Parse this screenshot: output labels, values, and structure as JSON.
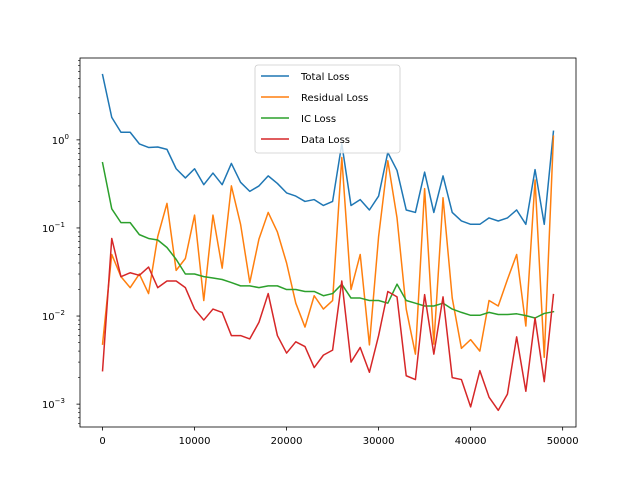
{
  "chart_data": {
    "type": "line",
    "title": "",
    "xlabel": "",
    "ylabel": "",
    "yscale": "log",
    "xlim": [
      -2450,
      51450
    ],
    "ylim": [
      0.00055,
      8.5
    ],
    "xticks": [
      0,
      10000,
      20000,
      30000,
      40000,
      50000
    ],
    "xtick_labels": [
      "0",
      "10000",
      "20000",
      "30000",
      "40000",
      "50000"
    ],
    "yticks": [
      0.001,
      0.01,
      0.1,
      1
    ],
    "ytick_labels": [
      "10",
      "10",
      "10",
      "10"
    ],
    "ytick_exponents": [
      "−3",
      "−2",
      "−1",
      "0"
    ],
    "grid": false,
    "legend_position": "top-center",
    "x": [
      0,
      1000,
      2000,
      3000,
      4000,
      5000,
      6000,
      7000,
      8000,
      9000,
      10000,
      11000,
      12000,
      13000,
      14000,
      15000,
      16000,
      17000,
      18000,
      19000,
      20000,
      21000,
      22000,
      23000,
      24000,
      25000,
      26000,
      27000,
      28000,
      29000,
      30000,
      31000,
      32000,
      33000,
      34000,
      35000,
      36000,
      37000,
      38000,
      39000,
      40000,
      41000,
      42000,
      43000,
      44000,
      45000,
      46000,
      47000,
      48000,
      49000
    ],
    "series": [
      {
        "name": "Total Loss",
        "color": "#1f77b4",
        "values": [
          5.5,
          1.8,
          1.22,
          1.22,
          0.9,
          0.82,
          0.83,
          0.78,
          0.47,
          0.37,
          0.47,
          0.31,
          0.42,
          0.31,
          0.54,
          0.33,
          0.26,
          0.3,
          0.39,
          0.32,
          0.25,
          0.23,
          0.2,
          0.21,
          0.18,
          0.2,
          0.9,
          0.18,
          0.21,
          0.16,
          0.23,
          0.72,
          0.45,
          0.16,
          0.15,
          0.43,
          0.15,
          0.39,
          0.15,
          0.12,
          0.11,
          0.11,
          0.13,
          0.12,
          0.13,
          0.16,
          0.11,
          0.46,
          0.11,
          1.25
        ]
      },
      {
        "name": "Residual Loss",
        "color": "#ff7f0e",
        "values": [
          0.0048,
          0.05,
          0.028,
          0.021,
          0.03,
          0.018,
          0.08,
          0.19,
          0.033,
          0.045,
          0.14,
          0.015,
          0.14,
          0.035,
          0.3,
          0.11,
          0.024,
          0.075,
          0.15,
          0.09,
          0.04,
          0.014,
          0.0075,
          0.017,
          0.012,
          0.015,
          0.63,
          0.02,
          0.05,
          0.0047,
          0.08,
          0.58,
          0.13,
          0.012,
          0.0037,
          0.28,
          0.0048,
          0.22,
          0.016,
          0.0043,
          0.0054,
          0.004,
          0.015,
          0.013,
          0.026,
          0.05,
          0.0077,
          0.35,
          0.0034,
          1.1
        ]
      },
      {
        "name": "IC Loss",
        "color": "#2ca02c",
        "values": [
          0.55,
          0.165,
          0.115,
          0.115,
          0.084,
          0.076,
          0.073,
          0.06,
          0.044,
          0.03,
          0.03,
          0.028,
          0.027,
          0.026,
          0.024,
          0.022,
          0.022,
          0.021,
          0.022,
          0.022,
          0.02,
          0.02,
          0.019,
          0.019,
          0.017,
          0.018,
          0.023,
          0.016,
          0.016,
          0.015,
          0.015,
          0.014,
          0.023,
          0.015,
          0.014,
          0.013,
          0.013,
          0.014,
          0.012,
          0.011,
          0.0102,
          0.0102,
          0.011,
          0.0104,
          0.0104,
          0.0106,
          0.0101,
          0.0095,
          0.0107,
          0.0112
        ]
      },
      {
        "name": "Data Loss",
        "color": "#d62728",
        "values": [
          0.0024,
          0.076,
          0.028,
          0.031,
          0.029,
          0.036,
          0.021,
          0.025,
          0.025,
          0.021,
          0.012,
          0.009,
          0.012,
          0.011,
          0.006,
          0.006,
          0.0055,
          0.0085,
          0.018,
          0.006,
          0.0038,
          0.0051,
          0.0045,
          0.0026,
          0.0036,
          0.0041,
          0.025,
          0.003,
          0.0044,
          0.0023,
          0.006,
          0.019,
          0.0165,
          0.0021,
          0.0019,
          0.0175,
          0.0037,
          0.0165,
          0.002,
          0.0019,
          0.00093,
          0.0024,
          0.0012,
          0.00085,
          0.0013,
          0.0058,
          0.0014,
          0.0095,
          0.0018,
          0.0175
        ]
      }
    ]
  }
}
